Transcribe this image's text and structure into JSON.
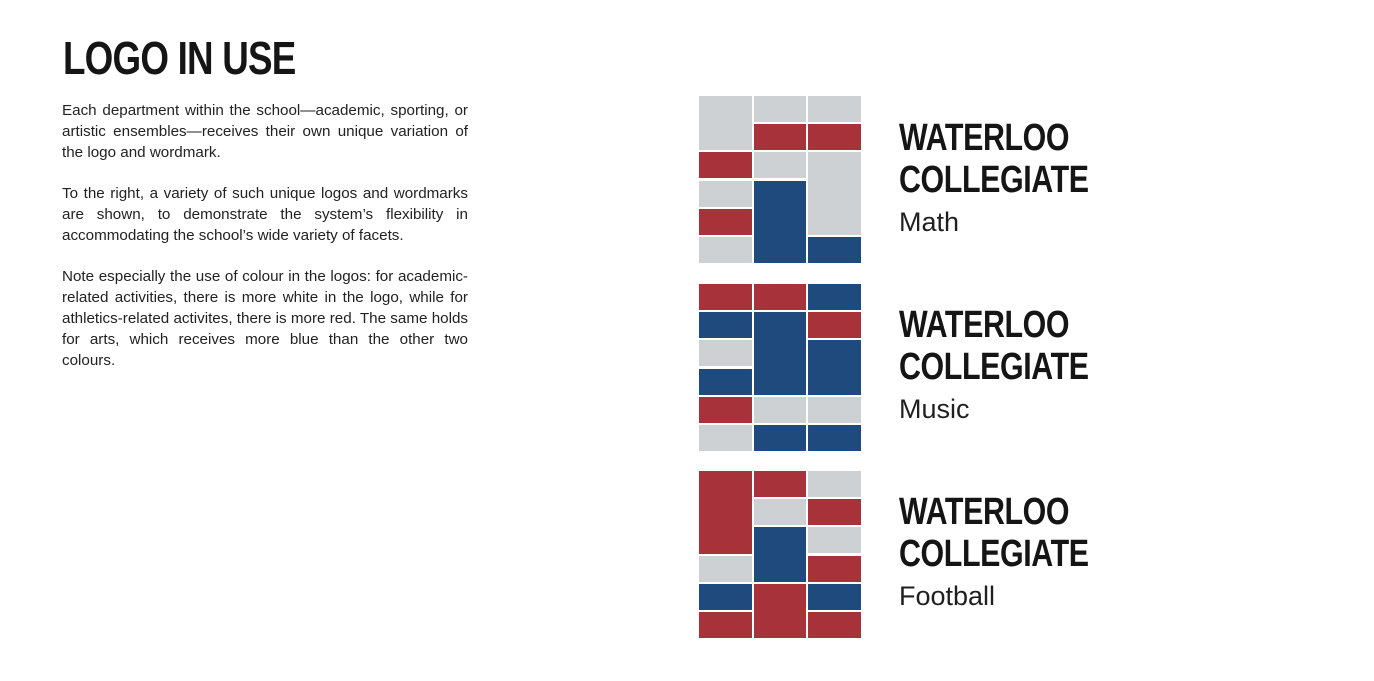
{
  "page": {
    "title": "LOGO IN USE",
    "paragraphs": [
      "Each department within the school—academic, sport­ing, or artistic ensembles—receives their own unique variation of the logo and wordmark.",
      "To the right, a variety of such unique logos and word­marks are shown, to demonstrate the system’s flex­ibility in accommodating the school’s wide variety of facets.",
      "Note especially the use of colour in the logos: for aca­demic-related activities, there is more white in the logo, while for athletics-related activites, there is more red. The same holds for arts, which receives more blue than the other two colours."
    ]
  },
  "colors": {
    "red": "#a8323a",
    "blue": "#1e4a7e",
    "grey": "#cdd1d4"
  },
  "logos": [
    {
      "wordmark_line1": "WATERLOO",
      "wordmark_line2": "COLLEGIATE",
      "department": "Math",
      "columns": [
        [
          "grey",
          "grey",
          "red",
          "grey",
          "red",
          "grey"
        ],
        [
          "grey",
          "red",
          "grey",
          "blue",
          "blue",
          "blue"
        ],
        [
          "grey",
          "red",
          "grey",
          "grey",
          "grey",
          "blue"
        ]
      ]
    },
    {
      "wordmark_line1": "WATERLOO",
      "wordmark_line2": "COLLEGIATE",
      "department": "Music",
      "columns": [
        [
          "red",
          "blue",
          "grey",
          "blue",
          "red",
          "grey"
        ],
        [
          "red",
          "blue",
          "blue",
          "blue",
          "grey",
          "blue"
        ],
        [
          "blue",
          "red",
          "blue",
          "blue",
          "grey",
          "blue"
        ]
      ]
    },
    {
      "wordmark_line1": "WATERLOO",
      "wordmark_line2": "COLLEGIATE",
      "department": "Football",
      "columns": [
        [
          "red",
          "red",
          "red",
          "grey",
          "blue",
          "red"
        ],
        [
          "red",
          "grey",
          "blue",
          "blue",
          "red",
          "red"
        ],
        [
          "grey",
          "red",
          "grey",
          "red",
          "blue",
          "red"
        ]
      ]
    }
  ]
}
